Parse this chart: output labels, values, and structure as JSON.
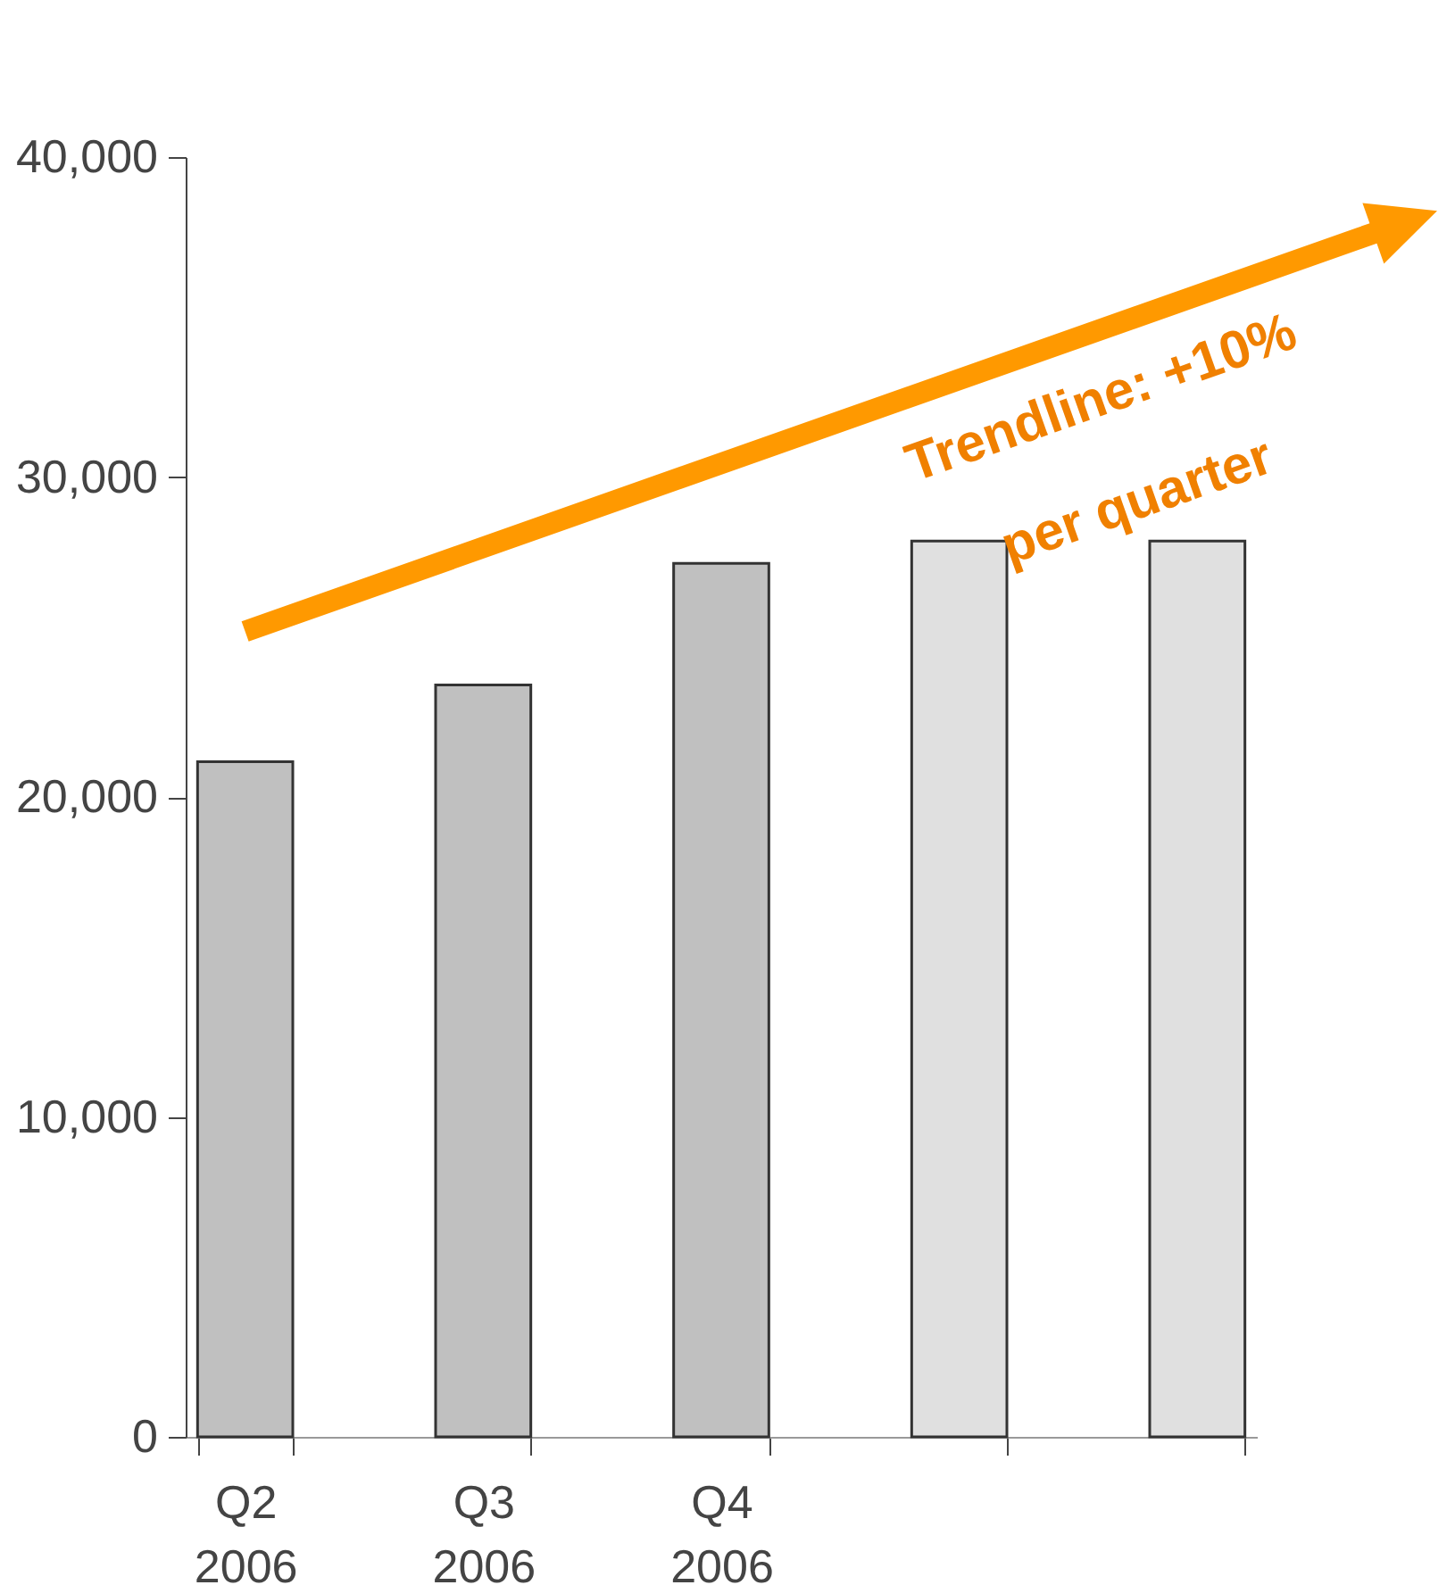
{
  "chart_data": {
    "type": "bar",
    "categories": [
      "Q2 2006",
      "Q3 2006",
      "Q4 2006",
      null,
      null
    ],
    "values": [
      21100,
      23500,
      27300,
      28000,
      28000
    ],
    "colors": [
      "#c0c0c0",
      "#c0c0c0",
      "#c0c0c0",
      "#e0e0e0",
      "#e0e0e0"
    ],
    "ylim": [
      0,
      40000
    ],
    "yticks": [
      0,
      {
        "value": 10000,
        "label": "10,000"
      },
      {
        "value": 20000,
        "label": "20,000"
      },
      {
        "value": 30000,
        "label": "30,000"
      },
      {
        "value": 40000,
        "label": "40,000"
      }
    ],
    "grid": false,
    "legend": false,
    "annotations": [
      "Trendline: +10%",
      "per quarter"
    ]
  }
}
